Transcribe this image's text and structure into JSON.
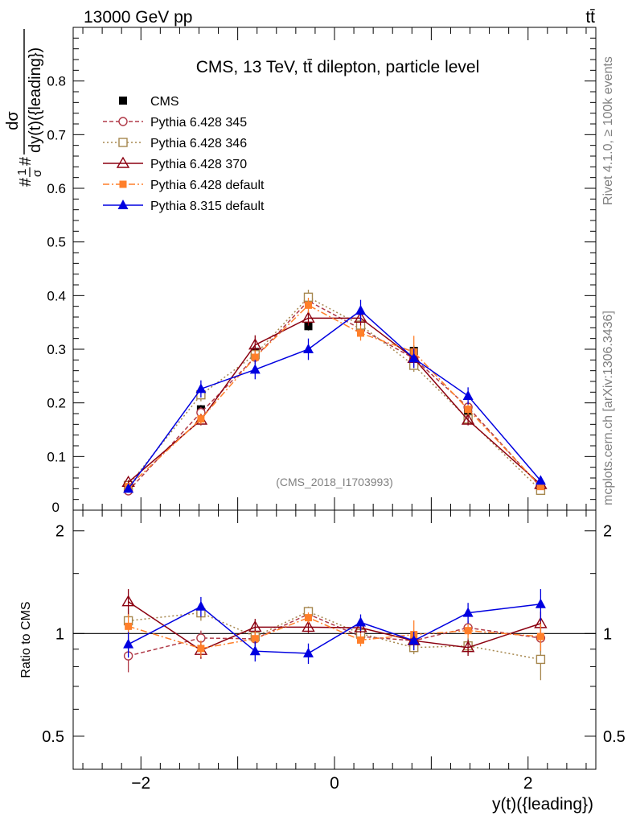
{
  "header": {
    "energy_label": "13000 GeV pp",
    "process_label": "tt̄"
  },
  "side_labels": {
    "rivet": "Rivet 4.1.0, ≥ 100k events",
    "mcplots": "mcplots.cern.ch [arXiv:1306.3436]"
  },
  "chart_data": [
    {
      "type": "line",
      "panel": "main",
      "title": "CMS, 13 TeV, tt̄ dilepton, particle level",
      "watermark": "(CMS_2018_I1703993)",
      "ylabel": "#1/σ# dσ/dy(t)({leading})",
      "xlabel": "",
      "xlim": [
        -2.7,
        2.7
      ],
      "ylim": [
        0,
        0.9
      ],
      "yticks": [
        0.1,
        0.2,
        0.3,
        0.4,
        0.5,
        0.6,
        0.7,
        0.8
      ],
      "ytick_labels": [
        "0.1",
        "0.2",
        "0.3",
        "0.4",
        "0.5",
        "0.6",
        "0.7",
        "0.8"
      ],
      "x": [
        -2.13,
        -1.38,
        -0.82,
        -0.27,
        0.27,
        0.82,
        1.38,
        2.13
      ],
      "series": [
        {
          "name": "CMS",
          "color": "#000000",
          "marker": "square-filled",
          "line": "none",
          "values": [
            0.042,
            0.188,
            0.295,
            0.343,
            0.345,
            0.297,
            0.185,
            0.045
          ],
          "errors": [
            0.003,
            0.008,
            0.01,
            0.008,
            0.008,
            0.01,
            0.008,
            0.003
          ]
        },
        {
          "name": "Pythia 6.428 345",
          "color": "#b03a48",
          "marker": "circle-open",
          "line": "dashed",
          "values": [
            0.036,
            0.182,
            0.285,
            0.39,
            0.338,
            0.283,
            0.192,
            0.043
          ],
          "errors": [
            0.004,
            0.01,
            0.012,
            0.013,
            0.012,
            0.012,
            0.01,
            0.004
          ]
        },
        {
          "name": "Pythia 6.428 346",
          "color": "#a6874e",
          "marker": "square-open",
          "line": "dotted",
          "values": [
            0.046,
            0.215,
            0.29,
            0.397,
            0.345,
            0.27,
            0.17,
            0.037
          ],
          "errors": [
            0.004,
            0.012,
            0.013,
            0.014,
            0.013,
            0.012,
            0.01,
            0.004
          ]
        },
        {
          "name": "Pythia 6.428 370",
          "color": "#8b0010",
          "marker": "triangle-open",
          "line": "solid",
          "values": [
            0.052,
            0.168,
            0.308,
            0.358,
            0.358,
            0.283,
            0.168,
            0.048
          ],
          "errors": [
            0.004,
            0.01,
            0.018,
            0.014,
            0.014,
            0.012,
            0.01,
            0.004
          ]
        },
        {
          "name": "Pythia 6.428 default",
          "color": "#ff7f2a",
          "marker": "square-filled-small",
          "line": "dashdot",
          "values": [
            0.044,
            0.17,
            0.285,
            0.382,
            0.33,
            0.295,
            0.188,
            0.044
          ],
          "errors": [
            0.004,
            0.01,
            0.013,
            0.014,
            0.014,
            0.03,
            0.01,
            0.004
          ]
        },
        {
          "name": "Pythia 8.315 default",
          "color": "#0000e0",
          "marker": "triangle-filled",
          "line": "solid",
          "values": [
            0.04,
            0.226,
            0.262,
            0.3,
            0.372,
            0.283,
            0.213,
            0.055
          ],
          "errors": [
            0.004,
            0.016,
            0.018,
            0.02,
            0.02,
            0.018,
            0.016,
            0.006
          ]
        }
      ]
    },
    {
      "type": "line",
      "panel": "ratio",
      "ylabel": "Ratio to CMS",
      "xlabel": "y(t)({leading})",
      "xlim": [
        -2.7,
        2.7
      ],
      "ylim": [
        0.4,
        2.3
      ],
      "yscale": "log",
      "yticks": [
        0.5,
        1,
        2
      ],
      "ytick_labels": [
        "0.5",
        "1",
        "2"
      ],
      "xticks": [
        -2,
        0,
        2
      ],
      "xtick_labels": [
        "−2",
        "0",
        "2"
      ],
      "x": [
        -2.13,
        -1.38,
        -0.82,
        -0.27,
        0.27,
        0.82,
        1.38,
        2.13
      ],
      "reference": 1,
      "series": [
        {
          "name": "Pythia 6.428 345",
          "color": "#b03a48",
          "marker": "circle-open",
          "line": "dashed",
          "values": [
            0.86,
            0.97,
            0.965,
            1.14,
            0.98,
            0.953,
            1.04,
            0.97
          ],
          "errors": [
            0.09,
            0.05,
            0.05,
            0.04,
            0.04,
            0.04,
            0.05,
            0.09
          ]
        },
        {
          "name": "Pythia 6.428 346",
          "color": "#a6874e",
          "marker": "square-open",
          "line": "dotted",
          "values": [
            1.09,
            1.15,
            0.98,
            1.16,
            1.0,
            0.91,
            0.92,
            0.84
          ],
          "errors": [
            0.09,
            0.06,
            0.05,
            0.04,
            0.04,
            0.04,
            0.05,
            0.11
          ]
        },
        {
          "name": "Pythia 6.428 370",
          "color": "#8b0010",
          "marker": "triangle-open",
          "line": "solid",
          "values": [
            1.24,
            0.893,
            1.044,
            1.044,
            1.04,
            0.953,
            0.91,
            1.07
          ],
          "errors": [
            0.11,
            0.05,
            0.06,
            0.04,
            0.04,
            0.04,
            0.05,
            0.09
          ]
        },
        {
          "name": "Pythia 6.428 default",
          "color": "#ff7f2a",
          "marker": "square-filled-small",
          "line": "dashdot",
          "values": [
            1.05,
            0.904,
            0.966,
            1.113,
            0.957,
            0.993,
            1.02,
            0.98
          ],
          "errors": [
            0.09,
            0.05,
            0.05,
            0.04,
            0.04,
            0.1,
            0.05,
            0.09
          ]
        },
        {
          "name": "Pythia 8.315 default",
          "color": "#0000e0",
          "marker": "triangle-filled",
          "line": "solid",
          "values": [
            0.93,
            1.2,
            0.888,
            0.875,
            1.078,
            0.953,
            1.15,
            1.22
          ],
          "errors": [
            0.08,
            0.08,
            0.06,
            0.06,
            0.06,
            0.06,
            0.08,
            0.13
          ]
        }
      ]
    }
  ]
}
